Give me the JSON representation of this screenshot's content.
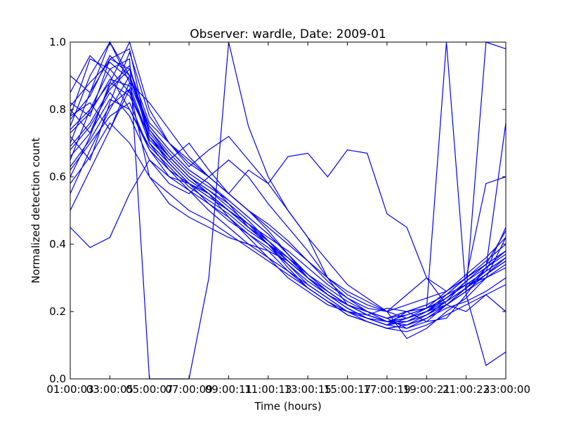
{
  "chart_data": {
    "type": "line",
    "title": "Observer: wardle, Date: 2009-01",
    "xlabel": "Time (hours)",
    "ylabel": "Normalized detection count",
    "x_hours": [
      1,
      2,
      3,
      4,
      5,
      6,
      7,
      8,
      9,
      10,
      11,
      12,
      13,
      14,
      15,
      16,
      17,
      18,
      19,
      20,
      21,
      22,
      23
    ],
    "x_tick_hours": [
      1,
      3,
      5,
      7,
      9,
      11,
      13,
      15,
      17,
      19,
      21,
      23
    ],
    "x_tick_labels": [
      "01:00:03",
      "03:00:05",
      "05:00:07",
      "07:00:09",
      "09:00:11",
      "11:00:13",
      "13:00:15",
      "15:00:17",
      "17:00:19",
      "19:00:21",
      "21:00:23",
      "23:00:00"
    ],
    "xlim": [
      1,
      23
    ],
    "ylim": [
      0,
      1
    ],
    "y_ticks": [
      0.0,
      0.2,
      0.4,
      0.6,
      0.8,
      1.0
    ],
    "y_tick_labels": [
      "0.0",
      "0.2",
      "0.4",
      "0.6",
      "0.8",
      "1.0"
    ],
    "grid": false,
    "line_color": "#0000ff",
    "series": [
      {
        "values": [
          0.78,
          0.95,
          0.92,
          0.85,
          0.72,
          0.66,
          0.6,
          0.55,
          0.48,
          0.42,
          0.36,
          0.3,
          0.26,
          0.22,
          0.2,
          0.18,
          0.17,
          0.19,
          0.21,
          0.24,
          0.28,
          0.32,
          0.36
        ]
      },
      {
        "values": [
          0.7,
          0.85,
          1.0,
          0.9,
          0.75,
          0.68,
          0.62,
          0.58,
          0.52,
          0.45,
          0.4,
          0.34,
          0.28,
          0.24,
          0.2,
          0.18,
          0.16,
          0.17,
          0.2,
          0.25,
          0.3,
          0.35,
          0.4
        ]
      },
      {
        "values": [
          0.6,
          0.72,
          0.88,
          1.0,
          0.8,
          0.7,
          0.65,
          0.6,
          0.55,
          0.5,
          0.44,
          0.37,
          0.3,
          0.25,
          0.22,
          0.2,
          0.18,
          0.15,
          0.17,
          0.22,
          0.27,
          0.33,
          0.38
        ]
      },
      {
        "values": [
          0.82,
          0.78,
          0.95,
          0.98,
          0.7,
          0.62,
          0.58,
          0.54,
          0.5,
          0.46,
          0.4,
          0.33,
          0.27,
          0.23,
          0.19,
          0.17,
          0.15,
          0.16,
          0.19,
          0.23,
          0.29,
          0.34,
          0.44
        ]
      },
      {
        "values": [
          0.75,
          0.9,
          1.0,
          0.88,
          0.74,
          0.66,
          0.6,
          0.56,
          0.52,
          0.47,
          0.41,
          0.35,
          0.3,
          0.26,
          0.22,
          0.19,
          0.17,
          0.18,
          0.21,
          0.26,
          0.31,
          0.36,
          0.42
        ]
      },
      {
        "values": [
          0.45,
          0.39,
          0.42,
          0.55,
          0.65,
          0.6,
          0.56,
          0.52,
          0.48,
          0.43,
          0.38,
          0.32,
          0.27,
          0.23,
          0.2,
          0.17,
          0.15,
          0.16,
          0.18,
          0.22,
          0.26,
          0.31,
          0.35
        ]
      },
      {
        "values": [
          0.65,
          0.8,
          0.92,
          0.95,
          0.0,
          0.0,
          0.0,
          0.3,
          1.0,
          0.75,
          0.6,
          0.5,
          0.42,
          0.3,
          0.22,
          0.2,
          0.18,
          0.2,
          0.22,
          0.25,
          0.3,
          0.34,
          0.38
        ]
      },
      {
        "values": [
          0.8,
          0.73,
          0.87,
          0.93,
          0.7,
          0.64,
          0.58,
          0.55,
          0.5,
          0.45,
          0.4,
          0.35,
          0.3,
          0.25,
          0.21,
          0.18,
          0.16,
          0.18,
          0.2,
          0.24,
          0.29,
          0.33,
          0.37
        ]
      },
      {
        "values": [
          0.72,
          0.65,
          0.82,
          0.97,
          0.78,
          0.7,
          0.63,
          0.68,
          0.72,
          0.65,
          0.58,
          0.5,
          0.42,
          0.35,
          0.28,
          0.24,
          0.2,
          0.18,
          0.2,
          0.24,
          0.28,
          0.32,
          0.36
        ]
      },
      {
        "values": [
          0.55,
          0.68,
          0.8,
          0.9,
          0.72,
          0.65,
          0.7,
          0.62,
          0.55,
          0.62,
          0.58,
          0.66,
          0.67,
          0.6,
          0.68,
          0.67,
          0.49,
          0.45,
          0.3,
          0.26,
          0.3,
          0.34,
          0.38
        ]
      },
      {
        "values": [
          0.78,
          0.82,
          0.74,
          0.86,
          0.6,
          0.52,
          0.48,
          0.45,
          0.42,
          0.4,
          0.38,
          0.35,
          0.3,
          0.26,
          0.22,
          0.2,
          0.18,
          0.2,
          0.22,
          0.25,
          0.28,
          0.3,
          0.33
        ]
      },
      {
        "values": [
          0.68,
          0.75,
          0.85,
          0.78,
          0.65,
          0.58,
          0.55,
          0.6,
          0.65,
          0.6,
          0.52,
          0.45,
          0.38,
          0.3,
          0.25,
          0.22,
          0.2,
          0.12,
          0.15,
          0.2,
          0.24,
          0.3,
          0.42
        ]
      },
      {
        "values": [
          0.85,
          0.96,
          0.9,
          0.8,
          0.68,
          0.6,
          0.58,
          0.55,
          0.5,
          0.46,
          0.42,
          0.38,
          0.33,
          0.28,
          0.24,
          0.21,
          0.2,
          0.25,
          0.3,
          0.22,
          0.2,
          0.25,
          0.2
        ]
      },
      {
        "values": [
          0.62,
          0.7,
          0.78,
          0.82,
          0.68,
          0.62,
          0.56,
          0.5,
          0.45,
          0.4,
          0.36,
          0.32,
          0.28,
          0.24,
          0.2,
          0.19,
          0.21,
          0.2,
          0.17,
          0.18,
          0.25,
          0.33,
          0.76
        ]
      },
      {
        "values": [
          0.74,
          0.8,
          0.88,
          0.84,
          0.72,
          0.64,
          0.58,
          0.52,
          0.47,
          0.43,
          0.39,
          0.34,
          0.29,
          0.25,
          0.21,
          0.18,
          0.16,
          0.15,
          0.18,
          0.21,
          0.23,
          0.26,
          0.3
        ]
      },
      {
        "values": [
          0.58,
          0.66,
          0.76,
          0.7,
          0.6,
          0.55,
          0.5,
          0.47,
          0.43,
          0.39,
          0.35,
          0.31,
          0.27,
          0.23,
          0.19,
          0.17,
          0.15,
          0.14,
          0.16,
          0.19,
          0.22,
          0.25,
          0.28
        ]
      },
      {
        "values": [
          0.9,
          0.85,
          0.95,
          0.92,
          0.76,
          0.7,
          0.64,
          0.6,
          0.55,
          0.5,
          0.45,
          0.4,
          0.35,
          0.3,
          0.26,
          0.23,
          0.2,
          0.22,
          0.24,
          0.26,
          0.3,
          0.58,
          0.6
        ]
      },
      {
        "values": [
          0.66,
          0.73,
          0.83,
          0.8,
          0.69,
          0.63,
          0.57,
          0.53,
          0.49,
          0.44,
          0.4,
          0.36,
          0.31,
          0.27,
          0.23,
          0.2,
          0.18,
          0.19,
          0.21,
          0.23,
          0.27,
          0.31,
          0.35
        ]
      },
      {
        "values": [
          0.5,
          0.62,
          0.74,
          0.88,
          0.82,
          0.74,
          0.66,
          0.6,
          0.55,
          0.5,
          0.46,
          0.41,
          0.35,
          0.29,
          0.24,
          0.2,
          0.17,
          0.16,
          0.18,
          0.22,
          0.27,
          0.32,
          0.45
        ]
      },
      {
        "values": [
          0.77,
          0.84,
          0.96,
          0.9,
          0.74,
          0.67,
          0.61,
          0.57,
          0.53,
          0.48,
          0.43,
          0.37,
          0.31,
          0.26,
          0.22,
          0.19,
          0.17,
          0.17,
          0.19,
          0.23,
          0.27,
          0.31,
          0.35
        ]
      },
      {
        "values": [
          0.69,
          0.76,
          0.86,
          0.92,
          0.73,
          0.66,
          0.6,
          0.56,
          0.51,
          0.46,
          0.41,
          0.36,
          0.3,
          0.25,
          0.21,
          0.18,
          0.16,
          0.2,
          0.21,
          1.0,
          0.25,
          0.04,
          0.08
        ]
      },
      {
        "values": [
          0.73,
          0.79,
          0.89,
          0.87,
          0.71,
          0.65,
          0.59,
          0.55,
          0.5,
          0.45,
          0.41,
          0.36,
          0.31,
          0.26,
          0.22,
          0.19,
          0.17,
          0.18,
          0.2,
          0.22,
          0.26,
          1.0,
          0.98
        ]
      },
      {
        "values": [
          0.63,
          0.71,
          0.81,
          0.86,
          0.7,
          0.64,
          0.58,
          0.54,
          0.5,
          0.45,
          0.4,
          0.35,
          0.3,
          0.26,
          0.22,
          0.19,
          0.17,
          0.17,
          0.19,
          0.22,
          0.26,
          0.3,
          0.34
        ]
      },
      {
        "values": [
          0.81,
          0.88,
          0.94,
          0.89,
          0.75,
          0.68,
          0.62,
          0.58,
          0.53,
          0.48,
          0.43,
          0.37,
          0.31,
          0.26,
          0.22,
          0.19,
          0.17,
          0.18,
          0.2,
          0.23,
          0.27,
          0.31,
          0.36
        ]
      }
    ]
  }
}
